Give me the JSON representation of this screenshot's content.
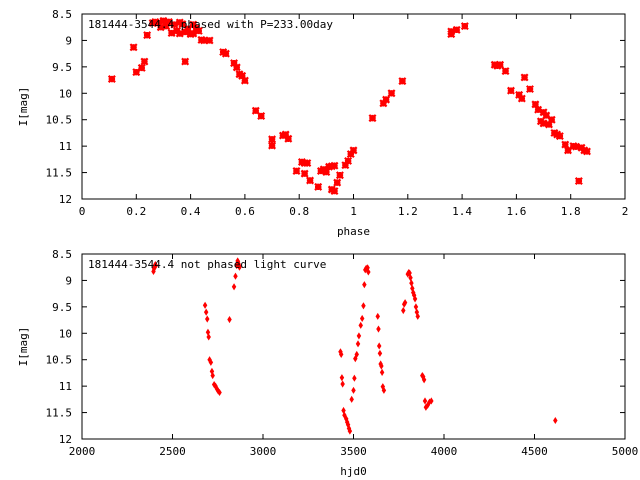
{
  "chart_data": [
    {
      "type": "scatter",
      "title": "181444-3544.4 phased with P=233.00day",
      "xlabel": "phase",
      "ylabel": "I[mag]",
      "xlim": [
        0,
        2
      ],
      "ylim": [
        8.5,
        12
      ],
      "y_inverted": true,
      "xticks": [
        "0",
        "0.2",
        "0.4",
        "0.6",
        "0.8",
        "1",
        "1.2",
        "1.4",
        "1.6",
        "1.8",
        "2"
      ],
      "yticks": [
        "8.5",
        "9",
        "9.5",
        "10",
        "10.5",
        "11",
        "11.5",
        "12"
      ],
      "marker_color": "#ff0000",
      "x": [
        0.11,
        0.19,
        0.2,
        0.22,
        0.23,
        0.24,
        0.26,
        0.27,
        0.28,
        0.29,
        0.3,
        0.31,
        0.31,
        0.32,
        0.33,
        0.34,
        0.35,
        0.36,
        0.36,
        0.37,
        0.38,
        0.38,
        0.39,
        0.4,
        0.41,
        0.41,
        0.42,
        0.43,
        0.44,
        0.45,
        0.47,
        0.52,
        0.53,
        0.56,
        0.57,
        0.58,
        0.59,
        0.6,
        0.64,
        0.66,
        0.7,
        0.7,
        0.74,
        0.75,
        0.76,
        0.79,
        0.81,
        0.82,
        0.82,
        0.83,
        0.84,
        0.87,
        0.88,
        0.89,
        0.9,
        0.91,
        0.92,
        0.92,
        0.93,
        0.93,
        0.94,
        0.95,
        0.97,
        0.98,
        0.99,
        1.0,
        1.07,
        1.11,
        1.12,
        1.14,
        1.18,
        1.36,
        1.36,
        1.38,
        1.41,
        1.52,
        1.53,
        1.54,
        1.56,
        1.58,
        1.61,
        1.62,
        1.63,
        1.65,
        1.67,
        1.68,
        1.69,
        1.7,
        1.7,
        1.71,
        1.72,
        1.73,
        1.74,
        1.75,
        1.76,
        1.78,
        1.79,
        1.81,
        1.82,
        1.83,
        1.84,
        1.85,
        1.86
      ],
      "y": [
        9.73,
        9.13,
        9.6,
        9.52,
        9.4,
        8.9,
        8.67,
        8.65,
        8.67,
        8.75,
        8.63,
        8.73,
        8.66,
        8.65,
        8.86,
        8.7,
        8.82,
        8.87,
        8.66,
        8.69,
        8.84,
        9.4,
        8.78,
        8.88,
        8.7,
        8.87,
        8.77,
        8.82,
        8.99,
        9.0,
        9.0,
        9.22,
        9.25,
        9.43,
        9.51,
        9.64,
        9.67,
        9.76,
        10.33,
        10.43,
        10.87,
        10.99,
        10.8,
        10.78,
        10.86,
        11.47,
        11.3,
        11.52,
        11.32,
        11.32,
        11.65,
        11.77,
        11.47,
        11.44,
        11.49,
        11.39,
        11.38,
        11.82,
        11.85,
        11.37,
        11.69,
        11.55,
        11.36,
        11.28,
        11.15,
        11.08,
        10.47,
        10.19,
        10.12,
        10.0,
        9.77,
        8.83,
        8.88,
        8.8,
        8.73,
        9.46,
        9.48,
        9.46,
        9.58,
        9.95,
        10.03,
        10.1,
        9.7,
        9.92,
        10.21,
        10.31,
        10.53,
        10.36,
        10.57,
        10.42,
        10.59,
        10.5,
        10.75,
        10.78,
        10.81,
        10.97,
        11.08,
        11.0,
        11.01,
        11.66,
        11.03,
        11.08,
        11.1
      ]
    },
    {
      "type": "scatter",
      "title": "181444-3544.4 not phased light curve",
      "xlabel": "hjd0",
      "ylabel": "I[mag]",
      "xlim": [
        2000,
        5000
      ],
      "ylim": [
        8.5,
        12
      ],
      "y_inverted": true,
      "xticks": [
        "2000",
        "2500",
        "3000",
        "3500",
        "4000",
        "4500",
        "5000"
      ],
      "yticks": [
        "8.5",
        "9",
        "9.5",
        "10",
        "10.5",
        "11",
        "11.5",
        "12"
      ],
      "marker_color": "#ff0000",
      "x": [
        2395,
        2398,
        2402,
        2405,
        2408,
        2680,
        2686,
        2692,
        2696,
        2700,
        2705,
        2712,
        2718,
        2722,
        2730,
        2738,
        2745,
        2752,
        2760,
        2815,
        2840,
        2848,
        2855,
        2860,
        2862,
        2865,
        2868,
        2870,
        3428,
        3432,
        3436,
        3440,
        3445,
        3450,
        3460,
        3465,
        3470,
        3475,
        3480,
        3490,
        3500,
        3505,
        3510,
        3518,
        3525,
        3530,
        3540,
        3548,
        3555,
        3560,
        3565,
        3570,
        3578,
        3582,
        3634,
        3638,
        3642,
        3646,
        3650,
        3654,
        3658,
        3662,
        3668,
        3775,
        3780,
        3785,
        3800,
        3805,
        3810,
        3815,
        3820,
        3825,
        3830,
        3835,
        3840,
        3845,
        3850,
        3855,
        3880,
        3885,
        3890,
        3895,
        3900,
        3910,
        3920,
        3930,
        4615
      ],
      "y": [
        8.83,
        8.78,
        8.74,
        8.7,
        8.72,
        9.47,
        9.6,
        9.73,
        9.98,
        10.07,
        10.5,
        10.55,
        10.72,
        10.8,
        10.97,
        11.0,
        11.05,
        11.09,
        11.12,
        9.74,
        9.12,
        8.92,
        8.72,
        8.63,
        8.65,
        8.69,
        8.72,
        8.75,
        10.35,
        10.4,
        10.84,
        10.96,
        11.46,
        11.55,
        11.62,
        11.68,
        11.73,
        11.8,
        11.85,
        11.25,
        11.08,
        10.85,
        10.48,
        10.4,
        10.2,
        10.05,
        9.85,
        9.72,
        9.48,
        9.08,
        8.8,
        8.77,
        8.76,
        8.84,
        9.68,
        9.92,
        10.24,
        10.38,
        10.58,
        10.62,
        10.74,
        11.01,
        11.08,
        9.57,
        9.45,
        9.42,
        8.88,
        8.85,
        8.86,
        8.95,
        9.05,
        9.15,
        9.23,
        9.28,
        9.35,
        9.5,
        9.6,
        9.68,
        10.8,
        10.82,
        10.88,
        11.28,
        11.4,
        11.36,
        11.3,
        11.28,
        11.65
      ]
    }
  ]
}
